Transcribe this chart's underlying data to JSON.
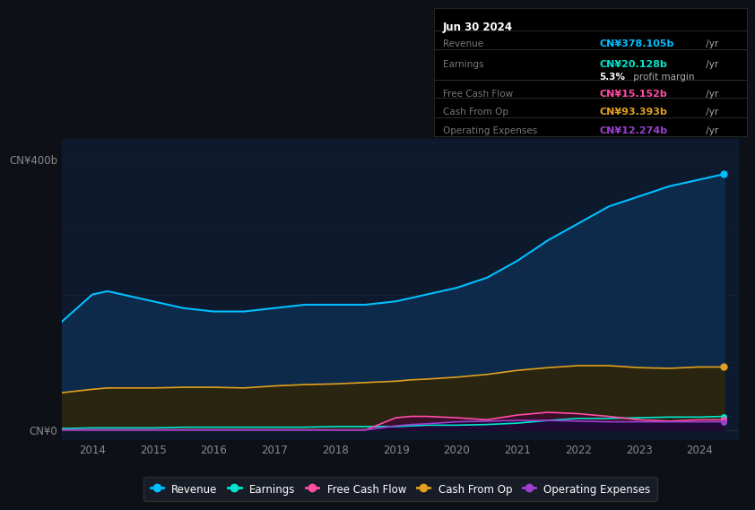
{
  "background_color": "#0d1117",
  "chart_bg_color": "#0d1a2e",
  "title": "Jun 30 2024",
  "ylabel_top": "CN¥400b",
  "ylabel_bottom": "CN¥0",
  "years": [
    2013.5,
    2014.0,
    2014.25,
    2014.5,
    2015.0,
    2015.5,
    2016.0,
    2016.5,
    2017.0,
    2017.5,
    2018.0,
    2018.5,
    2019.0,
    2019.25,
    2019.5,
    2020.0,
    2020.5,
    2021.0,
    2021.5,
    2022.0,
    2022.5,
    2023.0,
    2023.5,
    2024.0,
    2024.4
  ],
  "revenue": [
    160,
    200,
    205,
    200,
    190,
    180,
    175,
    175,
    180,
    185,
    185,
    185,
    190,
    195,
    200,
    210,
    225,
    250,
    280,
    305,
    330,
    345,
    360,
    370,
    378
  ],
  "earnings": [
    2,
    3,
    3,
    3,
    3,
    4,
    4,
    4,
    4,
    4,
    5,
    5,
    5,
    6,
    7,
    7,
    8,
    10,
    14,
    17,
    17,
    18,
    19,
    19,
    20
  ],
  "free_cash_flow": [
    0,
    0,
    0,
    0,
    0,
    0,
    0,
    0,
    0,
    0,
    0,
    0,
    18,
    20,
    20,
    18,
    15,
    22,
    26,
    24,
    20,
    15,
    13,
    15,
    15
  ],
  "cash_from_op": [
    55,
    60,
    62,
    62,
    62,
    63,
    63,
    62,
    65,
    67,
    68,
    70,
    72,
    74,
    75,
    78,
    82,
    88,
    92,
    95,
    95,
    92,
    91,
    93,
    93
  ],
  "operating_expenses": [
    0,
    0,
    0,
    0,
    0,
    0,
    0,
    0,
    0,
    0,
    0,
    0,
    6,
    8,
    9,
    12,
    13,
    14,
    14,
    13,
    12,
    12,
    12,
    12,
    12
  ],
  "revenue_color": "#00bfff",
  "earnings_color": "#00e5cc",
  "free_cash_flow_color": "#ff4da6",
  "cash_from_op_color": "#e0a020",
  "operating_expenses_color": "#9b40d0",
  "revenue_fill": "#0d2a4a",
  "cash_from_op_fill": "#2a2510",
  "free_cash_flow_fill": "#3a1028",
  "operating_expenses_fill": "#1e0a35",
  "info_box": {
    "date": "Jun 30 2024",
    "revenue_label": "Revenue",
    "revenue_value": "CN¥378.105b",
    "earnings_label": "Earnings",
    "earnings_value": "CN¥20.128b",
    "margin_pct": "5.3%",
    "margin_text": " profit margin",
    "fcf_label": "Free Cash Flow",
    "fcf_value": "CN¥15.152b",
    "cashop_label": "Cash From Op",
    "cashop_value": "CN¥93.393b",
    "opex_label": "Operating Expenses",
    "opex_value": "CN¥12.274b"
  },
  "legend": [
    {
      "label": "Revenue",
      "color": "#00bfff"
    },
    {
      "label": "Earnings",
      "color": "#00e5cc"
    },
    {
      "label": "Free Cash Flow",
      "color": "#ff4da6"
    },
    {
      "label": "Cash From Op",
      "color": "#e0a020"
    },
    {
      "label": "Operating Expenses",
      "color": "#9b40d0"
    }
  ],
  "xticks": [
    2014,
    2015,
    2016,
    2017,
    2018,
    2019,
    2020,
    2021,
    2022,
    2023,
    2024
  ],
  "ylim": [
    -15,
    430
  ],
  "xlim": [
    2013.5,
    2024.65
  ]
}
